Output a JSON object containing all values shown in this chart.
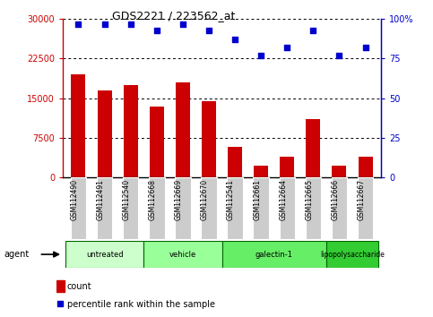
{
  "title": "GDS2221 / 223562_at",
  "categories": [
    "GSM112490",
    "GSM112491",
    "GSM112540",
    "GSM112668",
    "GSM112669",
    "GSM112670",
    "GSM112541",
    "GSM112661",
    "GSM112664",
    "GSM112665",
    "GSM112666",
    "GSM112667"
  ],
  "bar_values": [
    19500,
    16500,
    17500,
    13500,
    18000,
    14500,
    5800,
    2200,
    4000,
    11000,
    2200,
    4000
  ],
  "dot_values": [
    97,
    97,
    97,
    93,
    97,
    93,
    87,
    77,
    82,
    93,
    77,
    82
  ],
  "bar_color": "#cc0000",
  "dot_color": "#0000cc",
  "ylim_left": [
    0,
    30000
  ],
  "ylim_right": [
    0,
    100
  ],
  "yticks_left": [
    0,
    7500,
    15000,
    22500,
    30000
  ],
  "yticks_right": [
    0,
    25,
    50,
    75,
    100
  ],
  "ytick_labels_left": [
    "0",
    "7500",
    "15000",
    "22500",
    "30000"
  ],
  "ytick_labels_right": [
    "0",
    "25",
    "50",
    "75",
    "100%"
  ],
  "groups": [
    {
      "label": "untreated",
      "start": 0,
      "end": 3,
      "color": "#ccffcc"
    },
    {
      "label": "vehicle",
      "start": 3,
      "end": 6,
      "color": "#99ff99"
    },
    {
      "label": "galectin-1",
      "start": 6,
      "end": 10,
      "color": "#66ee66"
    },
    {
      "label": "lipopolysaccharide",
      "start": 10,
      "end": 12,
      "color": "#33cc33"
    }
  ],
  "agent_label": "agent",
  "legend_count_label": "count",
  "legend_pct_label": "percentile rank within the sample",
  "background_plot": "#ffffff",
  "background_fig": "#ffffff",
  "xticklabel_bg": "#cccccc",
  "group_border_color": "#006600"
}
